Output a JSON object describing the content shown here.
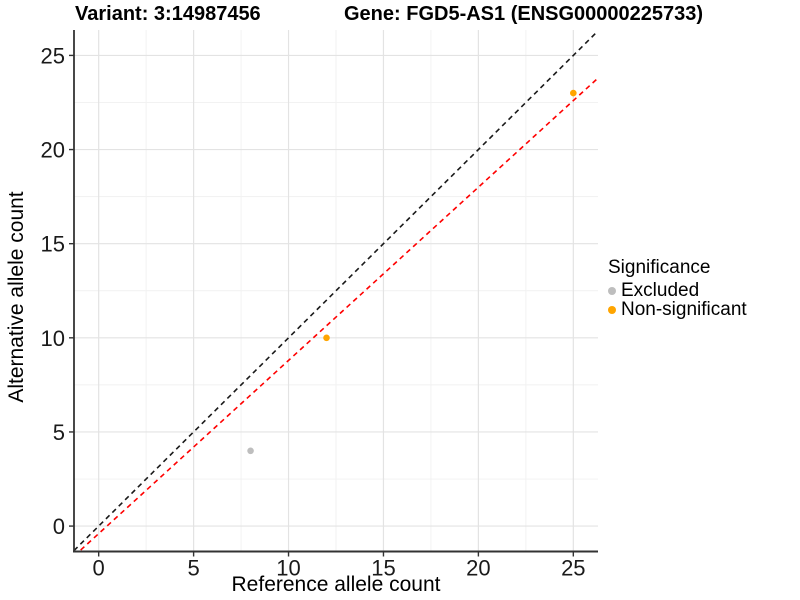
{
  "header": {
    "left_title": "Variant: 3:14987456",
    "right_title": "Gene: FGD5-AS1 (ENSG00000225733)"
  },
  "chart_data": {
    "type": "scatter",
    "title_left": "Variant: 3:14987456",
    "title_right": "Gene: FGD5-AS1 (ENSG00000225733)",
    "xlabel": "Reference allele count",
    "ylabel": "Alternative allele count",
    "xlim": [
      -1.3,
      26.3
    ],
    "ylim": [
      -1.35,
      26.35
    ],
    "x_ticks": [
      0,
      5,
      10,
      15,
      20,
      25
    ],
    "y_ticks": [
      0,
      5,
      10,
      15,
      20,
      25
    ],
    "x_minor": [
      2.5,
      7.5,
      12.5,
      17.5,
      22.5
    ],
    "y_minor": [
      2.5,
      7.5,
      12.5,
      17.5,
      22.5
    ],
    "grid": true,
    "series": [
      {
        "name": "Excluded",
        "color": "#bebebe",
        "points": [
          {
            "x": 8,
            "y": 4
          }
        ]
      },
      {
        "name": "Non-significant",
        "color": "#ffa500",
        "points": [
          {
            "x": 12,
            "y": 10
          },
          {
            "x": 25,
            "y": 23
          }
        ]
      }
    ],
    "lines": [
      {
        "name": "identity-line",
        "slope": 1,
        "intercept": 0,
        "color": "#1a1a1a",
        "style": "dashed"
      },
      {
        "name": "allelic-ratio-line",
        "slope": 0.92,
        "intercept": -0.4,
        "color": "#ff0000",
        "style": "dashed"
      }
    ],
    "legend": {
      "title": "Significance",
      "position": "right",
      "entries": [
        {
          "label": "Excluded",
          "color": "#bebebe"
        },
        {
          "label": "Non-significant",
          "color": "#ffa500"
        }
      ]
    },
    "style": {
      "grid_major_color": "#e3e3e3",
      "grid_minor_color": "#f1f1f1",
      "axis_line_color": "#333333",
      "tick_label_color": "#1a1a1a",
      "point_radius": 3.3
    }
  }
}
